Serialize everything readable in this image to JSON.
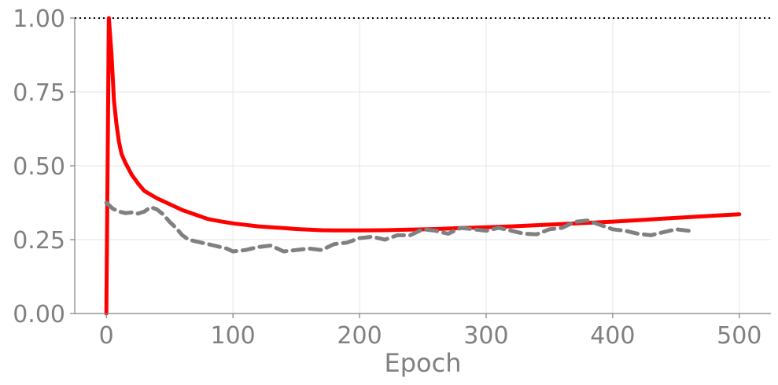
{
  "chart_data": {
    "type": "line",
    "title": "",
    "xlabel": "Epoch",
    "ylabel": "",
    "xlim": [
      -25,
      525
    ],
    "ylim": [
      0,
      1
    ],
    "xticks": [
      0,
      100,
      200,
      300,
      400,
      500
    ],
    "xtick_labels": [
      "0",
      "100",
      "200",
      "300",
      "400",
      "500"
    ],
    "yticks": [
      0,
      0.25,
      0.5,
      0.75,
      1.0
    ],
    "ytick_labels": [
      "0.00",
      "0.25",
      "0.50",
      "0.75",
      "1.00"
    ],
    "grid": true,
    "reference_line": {
      "y": 1.0,
      "style": "dotted",
      "color": "#000000"
    },
    "series": [
      {
        "style": "solid",
        "color": "#ff0000",
        "x": [
          0,
          2,
          4,
          6,
          8,
          10,
          12,
          15,
          20,
          25,
          30,
          40,
          50,
          60,
          70,
          80,
          90,
          100,
          110,
          120,
          130,
          140,
          150,
          160,
          170,
          180,
          190,
          200,
          220,
          240,
          260,
          280,
          300,
          320,
          340,
          360,
          380,
          400,
          420,
          440,
          460,
          480,
          500
        ],
        "y": [
          0.0,
          1.0,
          0.88,
          0.72,
          0.64,
          0.58,
          0.54,
          0.51,
          0.47,
          0.44,
          0.415,
          0.39,
          0.37,
          0.35,
          0.335,
          0.32,
          0.312,
          0.305,
          0.3,
          0.295,
          0.292,
          0.289,
          0.286,
          0.284,
          0.282,
          0.281,
          0.281,
          0.281,
          0.282,
          0.284,
          0.286,
          0.289,
          0.292,
          0.295,
          0.299,
          0.303,
          0.307,
          0.311,
          0.316,
          0.321,
          0.326,
          0.331,
          0.336
        ]
      },
      {
        "style": "dashed",
        "color": "#808080",
        "x": [
          0,
          5,
          10,
          15,
          20,
          25,
          30,
          35,
          40,
          45,
          50,
          55,
          60,
          65,
          70,
          75,
          80,
          85,
          90,
          95,
          100,
          110,
          120,
          130,
          140,
          150,
          160,
          170,
          180,
          190,
          200,
          210,
          220,
          230,
          240,
          250,
          260,
          270,
          280,
          290,
          300,
          310,
          320,
          330,
          340,
          350,
          360,
          370,
          380,
          390,
          400,
          410,
          420,
          430,
          440,
          450,
          460
        ],
        "y": [
          0.375,
          0.355,
          0.345,
          0.34,
          0.342,
          0.338,
          0.345,
          0.36,
          0.352,
          0.335,
          0.31,
          0.29,
          0.265,
          0.25,
          0.245,
          0.24,
          0.235,
          0.23,
          0.225,
          0.22,
          0.21,
          0.215,
          0.225,
          0.23,
          0.21,
          0.215,
          0.22,
          0.215,
          0.235,
          0.24,
          0.255,
          0.26,
          0.25,
          0.265,
          0.265,
          0.285,
          0.28,
          0.27,
          0.29,
          0.285,
          0.28,
          0.29,
          0.28,
          0.27,
          0.268,
          0.285,
          0.29,
          0.31,
          0.315,
          0.3,
          0.285,
          0.28,
          0.27,
          0.265,
          0.275,
          0.285,
          0.28
        ]
      }
    ]
  }
}
